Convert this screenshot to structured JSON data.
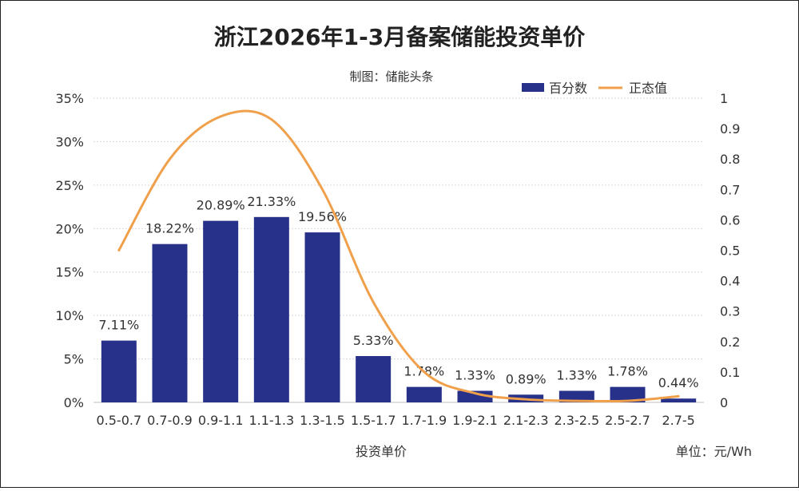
{
  "title": "浙江2026年1-3月备案储能投资单价",
  "subtitle": "制图：储能头条",
  "legend": {
    "bar_label": "百分数",
    "line_label": "正态值"
  },
  "xlabel": "投资单价",
  "unit_label": "单位：元/Wh",
  "colors": {
    "bar": "#27318a",
    "line": "#f0a04b"
  },
  "chart_data": {
    "type": "bar",
    "categories": [
      "0.5-0.7",
      "0.7-0.9",
      "0.9-1.1",
      "1.1-1.3",
      "1.3-1.5",
      "1.5-1.7",
      "1.7-1.9",
      "1.9-2.1",
      "2.1-2.3",
      "2.3-2.5",
      "2.5-2.7",
      "2.7-5"
    ],
    "series": [
      {
        "name": "百分数",
        "axis": "left",
        "type": "bar",
        "values": [
          7.11,
          18.22,
          20.89,
          21.33,
          19.56,
          5.33,
          1.78,
          1.33,
          0.89,
          1.33,
          1.78,
          0.44
        ],
        "labels": [
          "7.11%",
          "18.22%",
          "20.89%",
          "21.33%",
          "19.56%",
          "5.33%",
          "1.78%",
          "1.33%",
          "0.89%",
          "1.33%",
          "1.78%",
          "0.44%"
        ]
      },
      {
        "name": "正态值",
        "axis": "right",
        "type": "line",
        "values": [
          0.5,
          0.8,
          0.94,
          0.93,
          0.7,
          0.33,
          0.1,
          0.03,
          0.01,
          0.005,
          0.005,
          0.02
        ]
      }
    ],
    "y_left": {
      "min": 0,
      "max": 35,
      "step": 5,
      "ticks": [
        "0%",
        "5%",
        "10%",
        "15%",
        "20%",
        "25%",
        "30%",
        "35%"
      ]
    },
    "y_right": {
      "min": 0,
      "max": 1,
      "ticks": [
        "0",
        "0.1",
        "0.2",
        "0.3",
        "0.4",
        "0.5",
        "0.6",
        "0.7",
        "0.8",
        "0.9",
        "1"
      ]
    },
    "grid": true,
    "legend_position": "top-right"
  }
}
